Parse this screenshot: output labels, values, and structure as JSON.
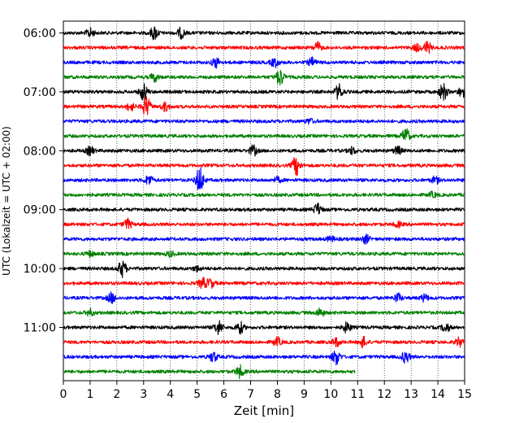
{
  "chart_data": {
    "type": "line",
    "title": "",
    "xlabel": "Zeit  [min]",
    "ylabel": "UTC (Lokalzeit = UTC + 02:00)",
    "xlim": [
      0,
      15
    ],
    "x_ticks": [
      "0",
      "1",
      "2",
      "3",
      "4",
      "5",
      "6",
      "7",
      "8",
      "9",
      "10",
      "11",
      "12",
      "13",
      "14",
      "15"
    ],
    "y_tick_labels": [
      "06:00",
      "07:00",
      "08:00",
      "09:00",
      "10:00",
      "11:00"
    ],
    "y_tick_rows": [
      0,
      4,
      8,
      12,
      16,
      20
    ],
    "grid": "vertical dotted",
    "trace_colors": [
      "#000000",
      "#ff0000",
      "#0000ff",
      "#008000"
    ],
    "rows_count": 24,
    "last_row_end_min": 10.9,
    "series": [
      {
        "values": [
          {
            "t": 1.0,
            "a": 0.5
          },
          {
            "t": 3.4,
            "a": 0.8
          },
          {
            "t": 4.4,
            "a": 0.6
          }
        ]
      },
      {
        "values": [
          {
            "t": 9.5,
            "a": 0.6
          },
          {
            "t": 13.6,
            "a": 0.7
          },
          {
            "t": 13.2,
            "a": 0.4
          }
        ]
      },
      {
        "values": [
          {
            "t": 5.7,
            "a": 0.6
          },
          {
            "t": 7.9,
            "a": 0.5
          },
          {
            "t": 9.3,
            "a": 0.5
          }
        ]
      },
      {
        "values": [
          {
            "t": 3.4,
            "a": 0.5
          },
          {
            "t": 8.1,
            "a": 1.0
          }
        ]
      },
      {
        "values": [
          {
            "t": 3.0,
            "a": 1.0
          },
          {
            "t": 10.3,
            "a": 0.9
          },
          {
            "t": 14.2,
            "a": 1.0
          },
          {
            "t": 14.9,
            "a": 0.6
          }
        ]
      },
      {
        "values": [
          {
            "t": 2.5,
            "a": 0.5
          },
          {
            "t": 3.1,
            "a": 1.2
          },
          {
            "t": 3.8,
            "a": 0.5
          }
        ]
      },
      {
        "values": [
          {
            "t": 9.2,
            "a": 0.3
          }
        ]
      },
      {
        "values": [
          {
            "t": 12.8,
            "a": 0.9
          }
        ]
      },
      {
        "values": [
          {
            "t": 1.0,
            "a": 0.5
          },
          {
            "t": 7.1,
            "a": 0.6
          },
          {
            "t": 10.8,
            "a": 0.4
          },
          {
            "t": 12.5,
            "a": 0.5
          }
        ]
      },
      {
        "values": [
          {
            "t": 8.7,
            "a": 1.1
          }
        ]
      },
      {
        "values": [
          {
            "t": 3.2,
            "a": 0.6
          },
          {
            "t": 5.1,
            "a": 1.6
          },
          {
            "t": 8.0,
            "a": 0.3
          },
          {
            "t": 13.9,
            "a": 0.4
          }
        ]
      },
      {
        "values": [
          {
            "t": 13.8,
            "a": 0.3
          }
        ]
      },
      {
        "values": [
          {
            "t": 9.5,
            "a": 0.7
          }
        ]
      },
      {
        "values": [
          {
            "t": 2.4,
            "a": 0.6
          },
          {
            "t": 12.5,
            "a": 0.3
          }
        ]
      },
      {
        "values": [
          {
            "t": 11.3,
            "a": 0.5
          },
          {
            "t": 10.0,
            "a": 0.3
          }
        ]
      },
      {
        "values": [
          {
            "t": 1.0,
            "a": 0.3
          },
          {
            "t": 4.0,
            "a": 0.3
          }
        ]
      },
      {
        "values": [
          {
            "t": 2.2,
            "a": 1.0
          },
          {
            "t": 5.0,
            "a": 0.3
          }
        ]
      },
      {
        "values": [
          {
            "t": 5.2,
            "a": 0.6
          },
          {
            "t": 5.5,
            "a": 0.5
          }
        ]
      },
      {
        "values": [
          {
            "t": 1.8,
            "a": 0.6
          },
          {
            "t": 12.5,
            "a": 0.5
          },
          {
            "t": 13.5,
            "a": 0.4
          }
        ]
      },
      {
        "values": [
          {
            "t": 9.6,
            "a": 0.5
          },
          {
            "t": 1.0,
            "a": 0.4
          }
        ]
      },
      {
        "values": [
          {
            "t": 5.8,
            "a": 0.8
          },
          {
            "t": 6.6,
            "a": 0.7
          },
          {
            "t": 10.6,
            "a": 0.6
          },
          {
            "t": 14.3,
            "a": 0.5
          }
        ]
      },
      {
        "values": [
          {
            "t": 8.0,
            "a": 0.5
          },
          {
            "t": 10.2,
            "a": 0.5
          },
          {
            "t": 11.2,
            "a": 0.6
          },
          {
            "t": 14.8,
            "a": 0.5
          }
        ]
      },
      {
        "values": [
          {
            "t": 5.6,
            "a": 0.6
          },
          {
            "t": 10.2,
            "a": 0.9
          },
          {
            "t": 12.8,
            "a": 0.7
          }
        ]
      },
      {
        "values": [
          {
            "t": 6.6,
            "a": 0.7
          }
        ]
      }
    ]
  }
}
